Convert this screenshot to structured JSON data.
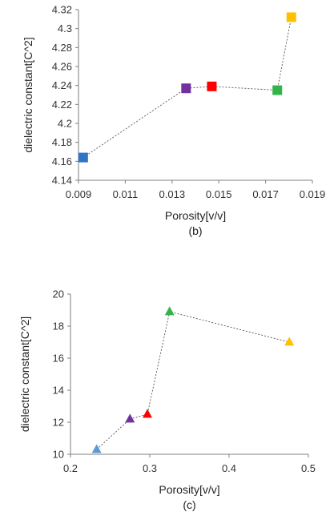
{
  "chart_data": [
    {
      "type": "scatter",
      "panel_label": "(b)",
      "xlabel": "Porosity[v/v]",
      "ylabel": "dielectric constant[C^2]",
      "xlim": [
        0.009,
        0.019
      ],
      "ylim": [
        4.14,
        4.32
      ],
      "xticks": [
        "0.009",
        "0.011",
        "0.013",
        "0.015",
        "0.017",
        "0.019"
      ],
      "yticks": [
        "4.14",
        "4.16",
        "4.18",
        "4.2",
        "4.22",
        "4.24",
        "4.26",
        "4.28",
        "4.3",
        "4.32"
      ],
      "marker": "square",
      "connected": true,
      "line_style": "dotted",
      "grid": false,
      "points": [
        {
          "x": 0.0092,
          "y": 4.164,
          "color": "#2e75c8"
        },
        {
          "x": 0.0136,
          "y": 4.237,
          "color": "#7030a0"
        },
        {
          "x": 0.0147,
          "y": 4.239,
          "color": "#ff0000"
        },
        {
          "x": 0.0175,
          "y": 4.235,
          "color": "#33b44a"
        },
        {
          "x": 0.0181,
          "y": 4.312,
          "color": "#ffc000"
        }
      ]
    },
    {
      "type": "scatter",
      "panel_label": "(c)",
      "xlabel": "Porosity[v/v]",
      "ylabel": "dielectric constant[C^2]",
      "xlim": [
        0.2,
        0.5
      ],
      "ylim": [
        10,
        20
      ],
      "xticks": [
        "0.2",
        "0.3",
        "0.4",
        "0.5"
      ],
      "yticks": [
        "10",
        "12",
        "14",
        "16",
        "18",
        "20"
      ],
      "marker": "triangle",
      "connected": true,
      "line_style": "dotted",
      "grid": false,
      "points": [
        {
          "x": 0.233,
          "y": 10.3,
          "color": "#5b9bd5"
        },
        {
          "x": 0.275,
          "y": 12.2,
          "color": "#7030a0"
        },
        {
          "x": 0.297,
          "y": 12.5,
          "color": "#ff0000"
        },
        {
          "x": 0.325,
          "y": 18.9,
          "color": "#33b44a"
        },
        {
          "x": 0.476,
          "y": 17.0,
          "color": "#ffc000"
        }
      ]
    }
  ]
}
